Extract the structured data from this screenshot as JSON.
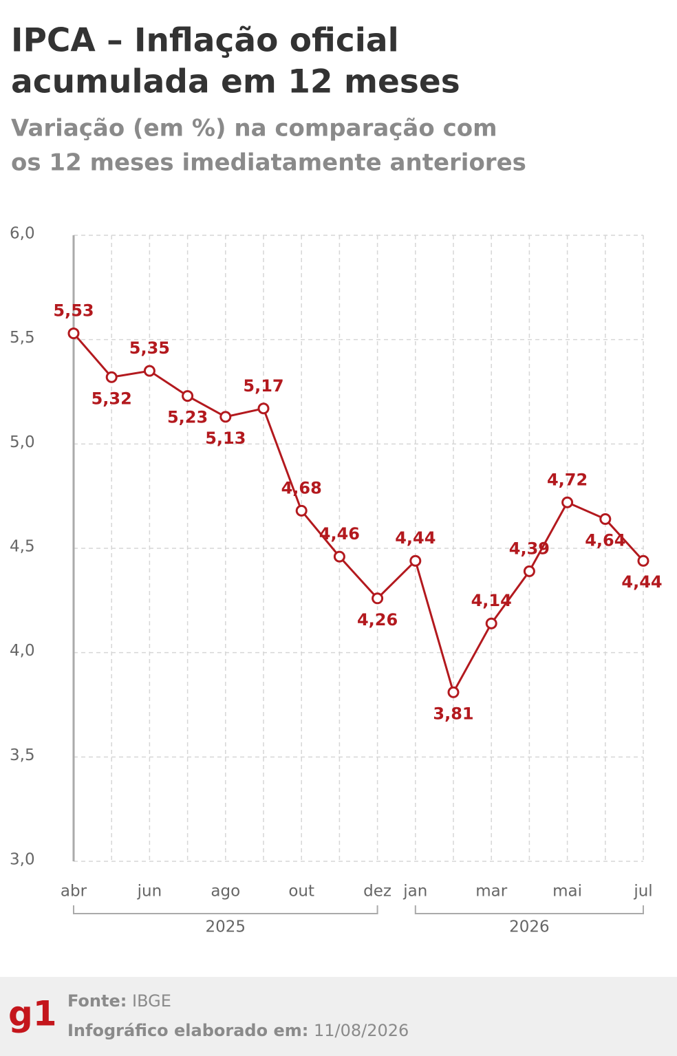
{
  "chart_data": {
    "type": "line",
    "title_lines": [
      "IPCA – Inflação oficial",
      "acumulada em 12 meses"
    ],
    "subtitle_lines": [
      "Variação (em %) na comparação com",
      "os 12 meses imediatamente anteriores"
    ],
    "categories": [
      "abr",
      null,
      "jun",
      null,
      "ago",
      null,
      "out",
      null,
      "dez",
      "jan",
      null,
      "mar",
      null,
      "mai",
      null,
      "jul"
    ],
    "years": [
      "2025",
      "2026"
    ],
    "series": [
      {
        "name": "IPCA",
        "color": "#b3191e",
        "values": [
          5.53,
          5.32,
          5.35,
          5.23,
          5.13,
          5.17,
          4.68,
          4.46,
          4.26,
          4.44,
          3.81,
          4.14,
          4.39,
          4.72,
          4.64,
          4.44
        ],
        "value_labels": [
          "5,53",
          "5,32",
          "5,35",
          "5,23",
          "5,13",
          "5,17",
          "4,68",
          "4,46",
          "4,26",
          "4,44",
          "3,81",
          "4,14",
          "4,39",
          "4,72",
          "4,64",
          "4,44"
        ]
      }
    ],
    "ylim": [
      3,
      6
    ],
    "yticks": [
      {
        "value": 3,
        "label": "3,0"
      },
      {
        "value": 3.5,
        "label": "3,5"
      },
      {
        "value": 4,
        "label": "4,0"
      },
      {
        "value": 4.5,
        "label": "4,5"
      },
      {
        "value": 5,
        "label": "5,0"
      },
      {
        "value": 5.5,
        "label": "5,5"
      },
      {
        "value": 6,
        "label": "6,0"
      }
    ],
    "grid": true
  },
  "footer": {
    "logo": "g1",
    "source_label": "Fonte:",
    "source": "IBGE",
    "date_label": "Infográfico elaborado em:",
    "date": "11/08/2026"
  }
}
